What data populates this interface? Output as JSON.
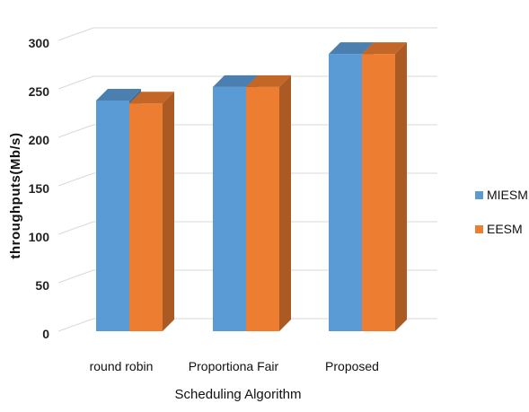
{
  "chart_data": {
    "type": "bar",
    "style": "3d-clustered-column",
    "categories": [
      "round robin",
      "Proportiona Fair",
      "Proposed"
    ],
    "series": [
      {
        "name": "MIESM",
        "values": [
          238,
          252,
          286
        ],
        "color": "#5B9BD5"
      },
      {
        "name": "EESM",
        "values": [
          235,
          252,
          286
        ],
        "color": "#ED7D31"
      }
    ],
    "xlabel": "Scheduling Algorithm",
    "ylabel": "throughputs(Mb/s)",
    "ylim": [
      0,
      300
    ],
    "yticks": [
      0,
      50,
      100,
      150,
      200,
      250,
      300
    ],
    "grid": true,
    "legend_position": "right"
  }
}
